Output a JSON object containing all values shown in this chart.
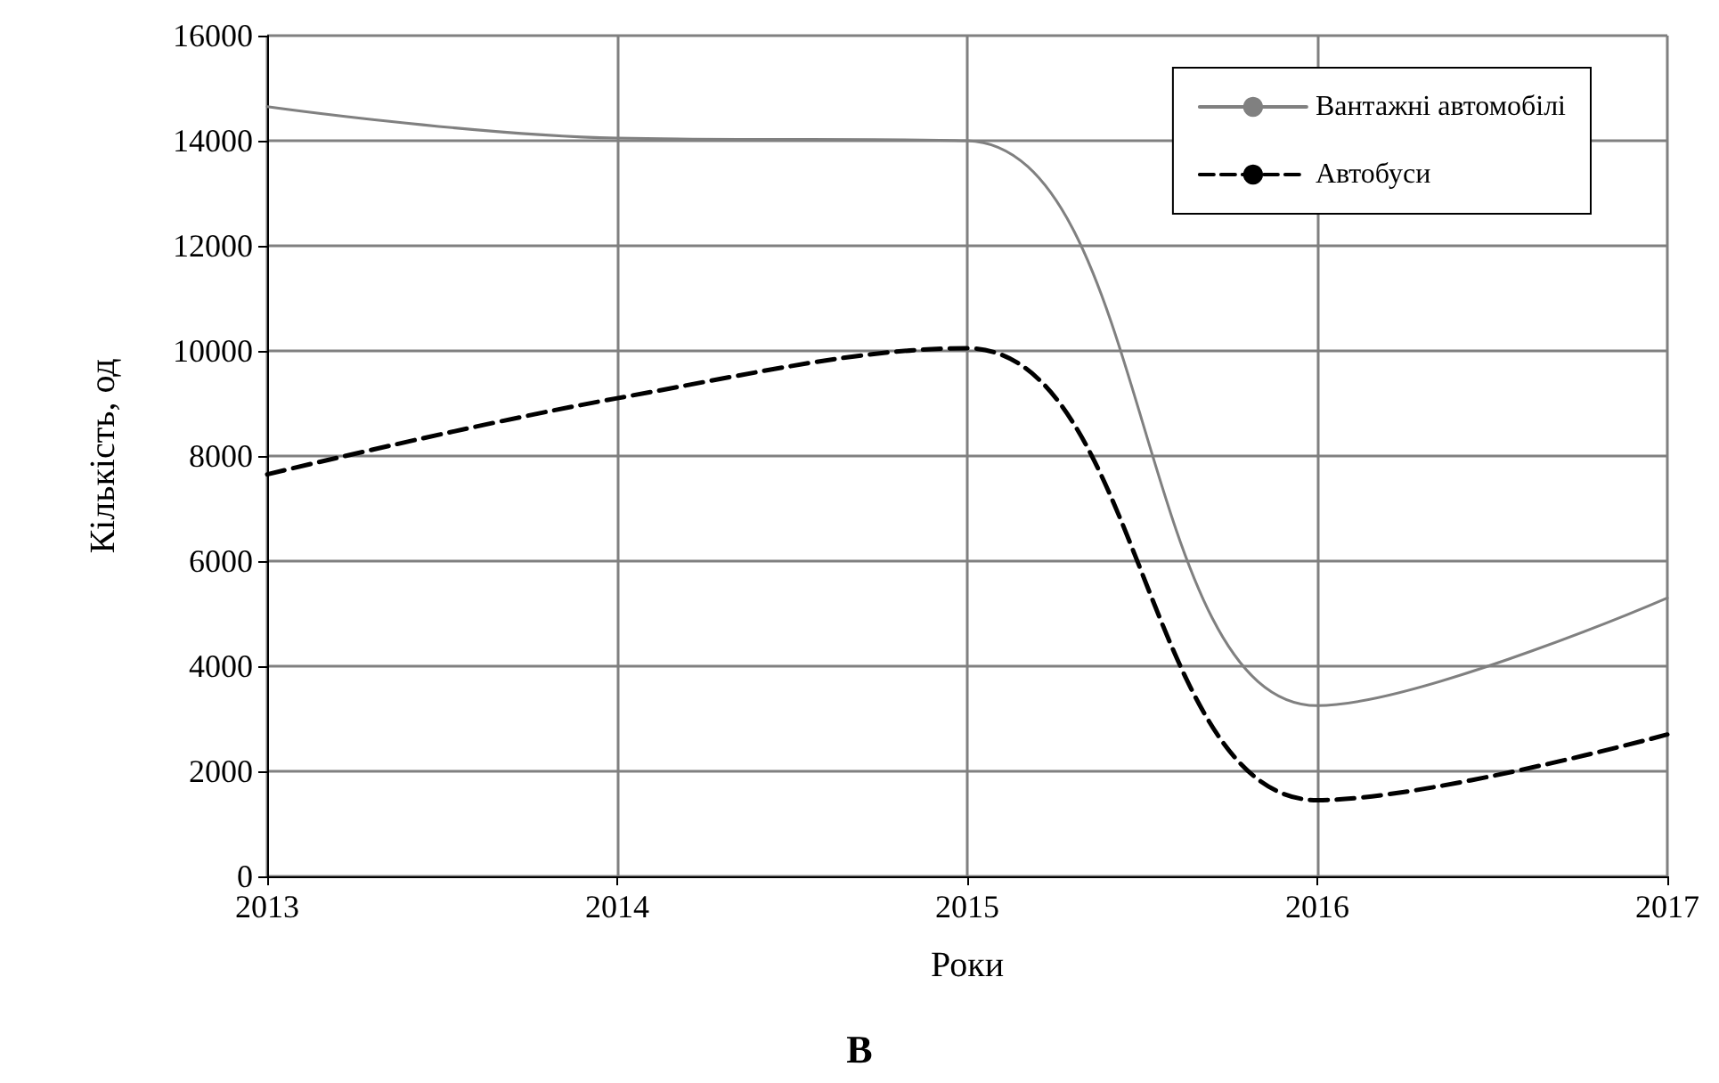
{
  "chart_data": {
    "type": "line",
    "xlabel": "Роки",
    "ylabel": "Кількість, од",
    "annotations": [
      "В"
    ],
    "x": [
      2013,
      2014,
      2015,
      2016,
      2017
    ],
    "series": [
      {
        "name": "Вантажні автомобілі",
        "color": "#808080",
        "line_style": "solid",
        "values": [
          14650,
          14050,
          14000,
          3250,
          5300
        ]
      },
      {
        "name": "Автобуси",
        "color": "#000000",
        "line_style": "dashed",
        "values": [
          7650,
          9100,
          10050,
          1450,
          2700
        ]
      }
    ],
    "xlim": [
      2013,
      2017
    ],
    "xticks": [
      2013,
      2014,
      2015,
      2016,
      2017
    ],
    "ylim": [
      0,
      16000
    ],
    "yticks": [
      0,
      2000,
      4000,
      6000,
      8000,
      10000,
      12000,
      14000,
      16000
    ],
    "grid": true,
    "legend": "top right",
    "marker": "none"
  }
}
